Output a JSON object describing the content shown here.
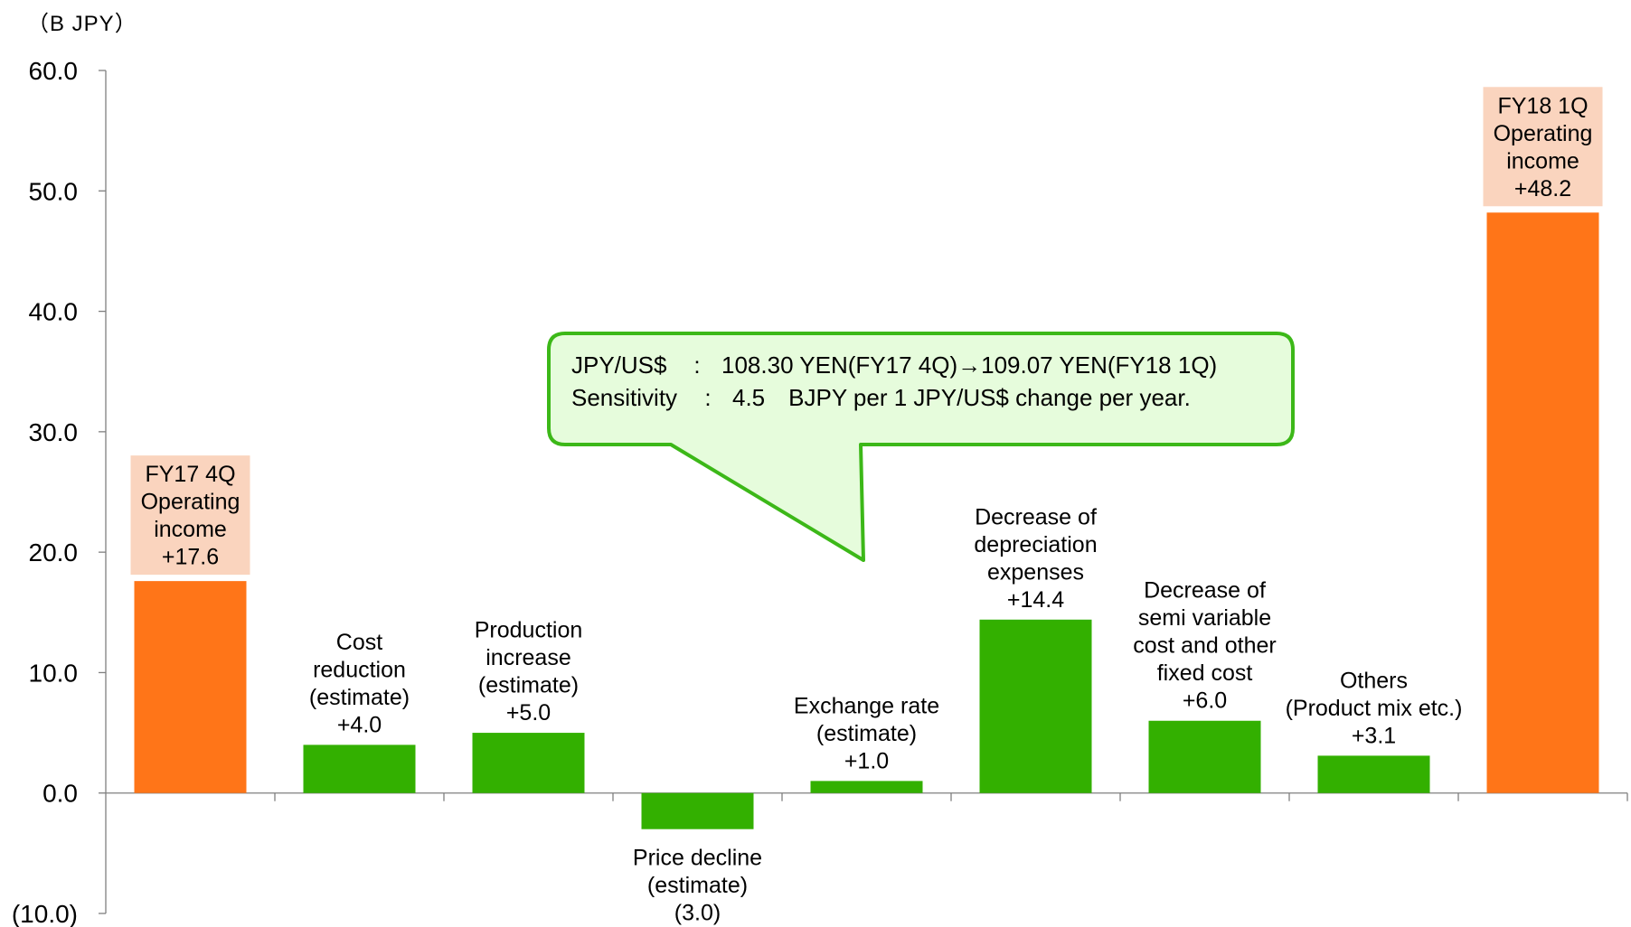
{
  "chart_data": {
    "type": "bar",
    "unit_label": "（B JPY）",
    "ylim": [
      -10,
      60
    ],
    "yticks": [
      "60.0",
      "50.0",
      "40.0",
      "30.0",
      "20.0",
      "10.0",
      "0.0",
      "(10.0)"
    ],
    "ytick_values": [
      60,
      50,
      40,
      30,
      20,
      10,
      0,
      -10
    ],
    "grid": false,
    "categories": [
      "FY17 4Q Operating income",
      "Cost reduction (estimate)",
      "Production increase (estimate)",
      "Price decline (estimate)",
      "Exchange rate (estimate)",
      "Decrease of depreciation expenses",
      "Decrease of semi variable cost and other fixed cost",
      "Others (Product mix etc.)",
      "FY18 1Q Operating income"
    ],
    "values": [
      17.6,
      4.0,
      5.0,
      -3.0,
      1.0,
      14.4,
      6.0,
      3.1,
      48.2
    ],
    "labels": [
      [
        "FY17 4Q",
        "Operating",
        "income",
        "+17.6"
      ],
      [
        "Cost",
        "reduction",
        "(estimate)",
        "+4.0"
      ],
      [
        "Production",
        "increase",
        "(estimate)",
        "+5.0"
      ],
      [
        "Price decline",
        "(estimate)",
        "(3.0)"
      ],
      [
        "Exchange rate",
        "(estimate)",
        "+1.0"
      ],
      [
        "Decrease of",
        "depreciation",
        "expenses",
        "+14.4"
      ],
      [
        "Decrease of",
        "semi variable",
        "cost and other",
        "fixed cost",
        "+6.0"
      ],
      [
        "Others",
        "(Product mix etc.)",
        "+3.1"
      ],
      [
        "FY18 1Q",
        "Operating",
        "income",
        "+48.2"
      ]
    ],
    "bar_kinds": [
      "total",
      "delta",
      "delta",
      "delta",
      "delta",
      "delta",
      "delta",
      "delta",
      "total"
    ],
    "colors": {
      "total": "#FF7518",
      "delta": "#33B000",
      "total_label_bg": "#FAD4BE",
      "callout_fill": "#E6FCDC",
      "callout_border": "#3CB818",
      "axis": "#7F7F7F"
    },
    "callout": {
      "line1_key": "JPY/US$",
      "line1_sep": ":",
      "line1_value": "108.30 YEN(FY17 4Q)→109.07 YEN(FY18 1Q)",
      "line2_key": "Sensitivity",
      "line2_sep": ":",
      "line2_value": "4.5　BJPY per 1 JPY/US$ change per year."
    }
  }
}
